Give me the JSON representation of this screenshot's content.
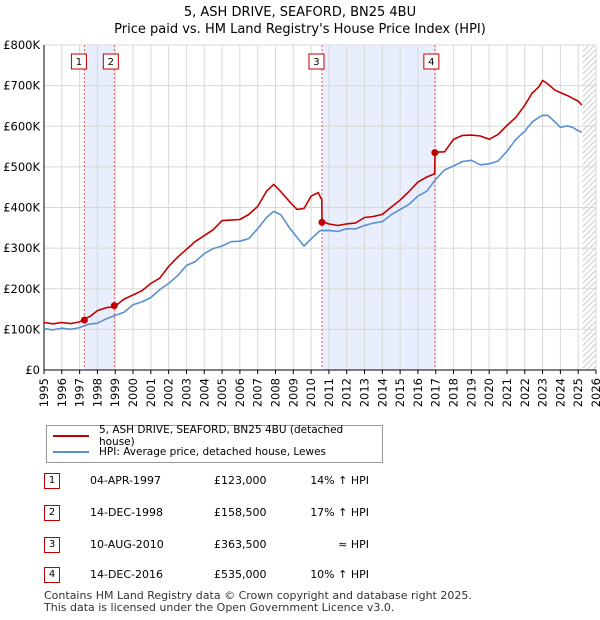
{
  "chart_data": {
    "type": "line",
    "title": "5, ASH DRIVE, SEAFORD, BN25 4BU",
    "subtitle": "Price paid vs. HM Land Registry's House Price Index (HPI)",
    "ylim": [
      0,
      800000
    ],
    "xlim": [
      1995,
      2026
    ],
    "y_ticks": [
      {
        "value": 0,
        "label": "£0"
      },
      {
        "value": 100000,
        "label": "£100K"
      },
      {
        "value": 200000,
        "label": "£200K"
      },
      {
        "value": 300000,
        "label": "£300K"
      },
      {
        "value": 400000,
        "label": "£400K"
      },
      {
        "value": 500000,
        "label": "£500K"
      },
      {
        "value": 600000,
        "label": "£600K"
      },
      {
        "value": 700000,
        "label": "£700K"
      },
      {
        "value": 800000,
        "label": "£800K"
      }
    ],
    "x_ticks": [
      "1995",
      "1996",
      "1997",
      "1998",
      "1999",
      "2000",
      "2001",
      "2002",
      "2003",
      "2004",
      "2005",
      "2006",
      "2007",
      "2008",
      "2009",
      "2010",
      "2011",
      "2012",
      "2013",
      "2014",
      "2015",
      "2016",
      "2017",
      "2018",
      "2019",
      "2020",
      "2021",
      "2022",
      "2023",
      "2024",
      "2025",
      "2026"
    ],
    "series": [
      {
        "name": "5, ASH DRIVE, SEAFORD, BN25 4BU (detached house)",
        "color": "#c00000",
        "x": [
          1995.0,
          1995.5,
          1996.0,
          1996.5,
          1997.0,
          1997.27,
          1997.6,
          1998.0,
          1998.5,
          1998.95,
          1999.5,
          2000.0,
          2000.5,
          2001.0,
          2001.5,
          2002.0,
          2002.5,
          2003.0,
          2003.5,
          2004.0,
          2004.5,
          2005.0,
          2005.5,
          2006.0,
          2006.5,
          2007.0,
          2007.5,
          2007.9,
          2008.3,
          2008.8,
          2009.2,
          2009.6,
          2010.0,
          2010.4,
          2010.6,
          2010.61,
          2011.0,
          2011.5,
          2012.0,
          2012.5,
          2013.0,
          2013.5,
          2014.0,
          2014.5,
          2015.0,
          2015.5,
          2016.0,
          2016.5,
          2016.94,
          2016.96,
          2017.5,
          2018.0,
          2018.5,
          2019.0,
          2019.5,
          2020.0,
          2020.5,
          2021.0,
          2021.5,
          2022.0,
          2022.4,
          2022.8,
          2023.0,
          2023.3,
          2023.7,
          2024.0,
          2024.4,
          2024.7,
          2025.0,
          2025.2
        ],
        "values": [
          117000,
          116000,
          114000,
          116000,
          119000,
          123000,
          135000,
          145000,
          152000,
          158500,
          172000,
          185000,
          197000,
          210000,
          228000,
          255000,
          275000,
          300000,
          315000,
          330000,
          348000,
          365000,
          370000,
          372000,
          380000,
          405000,
          440000,
          455000,
          442000,
          412000,
          395000,
          400000,
          425000,
          438000,
          420000,
          363500,
          362000,
          355000,
          358000,
          365000,
          373000,
          378000,
          385000,
          398000,
          420000,
          440000,
          460000,
          478000,
          482000,
          535000,
          540000,
          565000,
          578000,
          580000,
          573000,
          570000,
          580000,
          600000,
          625000,
          650000,
          680000,
          700000,
          710000,
          705000,
          690000,
          680000,
          678000,
          668000,
          660000,
          652000
        ]
      },
      {
        "name": "HPI: Average price, detached house, Lewes",
        "color": "#5b8fd0",
        "x": [
          1995.0,
          1995.5,
          1996.0,
          1996.5,
          1997.0,
          1997.5,
          1998.0,
          1998.5,
          1999.0,
          1999.5,
          2000.0,
          2000.5,
          2001.0,
          2001.5,
          2002.0,
          2002.5,
          2003.0,
          2003.5,
          2004.0,
          2004.5,
          2005.0,
          2005.5,
          2006.0,
          2006.5,
          2007.0,
          2007.5,
          2007.9,
          2008.3,
          2008.8,
          2009.2,
          2009.6,
          2010.0,
          2010.5,
          2011.0,
          2011.5,
          2012.0,
          2012.5,
          2013.0,
          2013.5,
          2014.0,
          2014.5,
          2015.0,
          2015.5,
          2016.0,
          2016.5,
          2017.0,
          2017.5,
          2018.0,
          2018.5,
          2019.0,
          2019.5,
          2020.0,
          2020.5,
          2021.0,
          2021.5,
          2022.0,
          2022.4,
          2022.8,
          2023.0,
          2023.3,
          2023.7,
          2024.0,
          2024.4,
          2024.7,
          2025.0,
          2025.2
        ],
        "values": [
          102000,
          101000,
          100000,
          102000,
          105000,
          110000,
          118000,
          125000,
          133000,
          145000,
          158000,
          168000,
          180000,
          195000,
          215000,
          232000,
          255000,
          270000,
          285000,
          298000,
          308000,
          313000,
          318000,
          325000,
          345000,
          378000,
          390000,
          380000,
          352000,
          325000,
          305000,
          325000,
          340000,
          345000,
          342000,
          345000,
          350000,
          355000,
          360000,
          368000,
          380000,
          395000,
          410000,
          425000,
          442000,
          470000,
          490000,
          505000,
          512000,
          515000,
          508000,
          505000,
          515000,
          540000,
          565000,
          590000,
          610000,
          620000,
          630000,
          625000,
          610000,
          600000,
          598000,
          598000,
          590000,
          585000
        ]
      }
    ],
    "sales": [
      {
        "marker": "1",
        "x": 1997.27,
        "value": 123000
      },
      {
        "marker": "2",
        "x": 1998.95,
        "value": 158500
      },
      {
        "marker": "3",
        "x": 2010.61,
        "value": 363500
      },
      {
        "marker": "4",
        "x": 2016.95,
        "value": 535000
      }
    ],
    "shaded_ranges": [
      [
        1997.27,
        1998.95
      ],
      [
        2010.61,
        2016.95
      ]
    ],
    "legend": [
      {
        "label": "5, ASH DRIVE, SEAFORD, BN25 4BU (detached house)",
        "color": "#c00000"
      },
      {
        "label": "HPI: Average price, detached house, Lewes",
        "color": "#5b8fd0"
      }
    ],
    "table": [
      {
        "marker": "1",
        "date": "04-APR-1997",
        "price": "£123,000",
        "hpi": "14% ↑ HPI"
      },
      {
        "marker": "2",
        "date": "14-DEC-1998",
        "price": "£158,500",
        "hpi": "17% ↑ HPI"
      },
      {
        "marker": "3",
        "date": "10-AUG-2010",
        "price": "£363,500",
        "hpi": "≈ HPI"
      },
      {
        "marker": "4",
        "date": "14-DEC-2016",
        "price": "£535,000",
        "hpi": "10% ↑ HPI"
      }
    ],
    "footer": [
      "Contains HM Land Registry data © Crown copyright and database right 2025.",
      "This data is licensed under the Open Government Licence v3.0."
    ]
  }
}
